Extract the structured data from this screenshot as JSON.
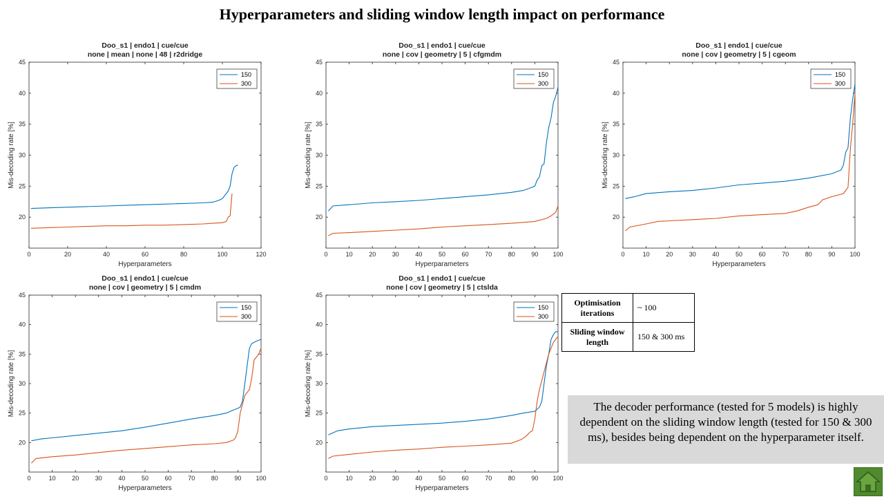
{
  "slide": {
    "title": "Hyperparameters and sliding window length impact on performance"
  },
  "info_table": {
    "rows": [
      {
        "label": "Optimisation iterations",
        "value": "~ 100"
      },
      {
        "label": "Sliding window length",
        "value": "150  &  300 ms"
      }
    ]
  },
  "summary": "The decoder performance (tested for 5 models) is highly dependent on the sliding  window length (tested for 150 & 300 ms), besides being dependent on the hyperparameter itself.",
  "home_icon": "home-icon",
  "colors": {
    "series_150": "#0072BD",
    "series_300": "#D95319"
  },
  "chart_data": [
    {
      "type": "line",
      "title": [
        "Doo_s1 | endo1 | cue/cue",
        "none | mean | none | 48 | r2dridge"
      ],
      "xlabel": "Hyperparameters",
      "ylabel": "Mis-decoding rate [%]",
      "xlim": [
        0,
        120
      ],
      "ylim": [
        15,
        45
      ],
      "xticks": [
        0,
        20,
        40,
        60,
        80,
        100,
        120
      ],
      "yticks": [
        20,
        25,
        30,
        35,
        40,
        45
      ],
      "legend": "top-right",
      "series": [
        {
          "name": "150",
          "x": [
            1,
            10,
            20,
            30,
            40,
            50,
            60,
            70,
            80,
            90,
            95,
            98,
            100,
            102,
            103,
            104,
            105,
            106,
            107,
            108
          ],
          "y": [
            21.4,
            21.5,
            21.6,
            21.7,
            21.8,
            21.9,
            22.0,
            22.1,
            22.2,
            22.3,
            22.4,
            22.7,
            23.0,
            23.8,
            24.2,
            25.0,
            27.0,
            28.0,
            28.3,
            28.4
          ]
        },
        {
          "name": "300",
          "x": [
            1,
            10,
            20,
            30,
            40,
            50,
            60,
            70,
            80,
            90,
            95,
            100,
            102,
            103,
            104,
            105
          ],
          "y": [
            18.2,
            18.3,
            18.4,
            18.5,
            18.6,
            18.6,
            18.7,
            18.7,
            18.8,
            18.9,
            19.0,
            19.1,
            19.3,
            20.0,
            20.2,
            23.8
          ]
        }
      ]
    },
    {
      "type": "line",
      "title": [
        "Doo_s1 | endo1 | cue/cue",
        "none | cov | geometry | 5 | cfgmdm"
      ],
      "xlabel": "Hyperparameters",
      "ylabel": "Mis-decoding rate [%]",
      "xlim": [
        0,
        100
      ],
      "ylim": [
        15,
        45
      ],
      "xticks": [
        0,
        10,
        20,
        30,
        40,
        50,
        60,
        70,
        80,
        90,
        100
      ],
      "yticks": [
        20,
        25,
        30,
        35,
        40,
        45
      ],
      "legend": "top-right",
      "series": [
        {
          "name": "150",
          "x": [
            1,
            3,
            10,
            20,
            30,
            40,
            50,
            60,
            70,
            80,
            85,
            88,
            90,
            91,
            92,
            93,
            94,
            95,
            96,
            97,
            98,
            99,
            100
          ],
          "y": [
            21.0,
            21.8,
            22.0,
            22.3,
            22.5,
            22.7,
            23.0,
            23.3,
            23.6,
            24.0,
            24.3,
            24.7,
            25.0,
            26.0,
            26.5,
            28.3,
            28.6,
            32.0,
            34.5,
            36.0,
            38.5,
            39.5,
            41.0
          ]
        },
        {
          "name": "300",
          "x": [
            1,
            3,
            10,
            20,
            30,
            40,
            50,
            60,
            70,
            80,
            90,
            95,
            97,
            99,
            100
          ],
          "y": [
            17.0,
            17.4,
            17.5,
            17.7,
            17.9,
            18.1,
            18.4,
            18.6,
            18.8,
            19.0,
            19.3,
            19.8,
            20.2,
            20.8,
            21.8
          ]
        }
      ]
    },
    {
      "type": "line",
      "title": [
        "Doo_s1 | endo1 | cue/cue",
        "none | cov | geometry | 5 | cgeom"
      ],
      "xlabel": "Hyperparameters",
      "ylabel": "Mis-decoding rate [%]",
      "xlim": [
        0,
        100
      ],
      "ylim": [
        15,
        45
      ],
      "xticks": [
        0,
        10,
        20,
        30,
        40,
        50,
        60,
        70,
        80,
        90,
        100
      ],
      "yticks": [
        20,
        25,
        30,
        35,
        40,
        45
      ],
      "legend": "top-right",
      "series": [
        {
          "name": "150",
          "x": [
            1,
            5,
            10,
            20,
            30,
            40,
            50,
            60,
            70,
            80,
            90,
            94,
            95,
            96,
            97,
            98,
            99,
            100
          ],
          "y": [
            23.0,
            23.3,
            23.8,
            24.1,
            24.3,
            24.7,
            25.2,
            25.5,
            25.8,
            26.3,
            27.0,
            27.6,
            28.4,
            30.5,
            31.2,
            36.0,
            39.0,
            41.5
          ]
        },
        {
          "name": "300",
          "x": [
            1,
            3,
            10,
            15,
            20,
            30,
            40,
            50,
            60,
            70,
            75,
            80,
            84,
            86,
            90,
            95,
            97,
            98,
            99,
            100
          ],
          "y": [
            17.8,
            18.4,
            18.9,
            19.3,
            19.4,
            19.6,
            19.8,
            20.2,
            20.4,
            20.6,
            21.0,
            21.6,
            22.0,
            22.8,
            23.3,
            23.8,
            24.8,
            31.0,
            35.0,
            40.0
          ]
        }
      ]
    },
    {
      "type": "line",
      "title": [
        "Doo_s1 | endo1 | cue/cue",
        "none | cov | geometry | 5 | cmdm"
      ],
      "xlabel": "Hyperparameters",
      "ylabel": "Mis-decoding rate [%]",
      "xlim": [
        0,
        100
      ],
      "ylim": [
        15,
        45
      ],
      "xticks": [
        0,
        10,
        20,
        30,
        40,
        50,
        60,
        70,
        80,
        90,
        100
      ],
      "yticks": [
        20,
        25,
        30,
        35,
        40,
        45
      ],
      "legend": "top-right",
      "series": [
        {
          "name": "150",
          "x": [
            1,
            5,
            10,
            20,
            30,
            40,
            50,
            60,
            70,
            80,
            85,
            88,
            90,
            91,
            92,
            93,
            94,
            95,
            96,
            98,
            100
          ],
          "y": [
            20.3,
            20.6,
            20.8,
            21.2,
            21.6,
            22.0,
            22.6,
            23.3,
            24.0,
            24.6,
            25.0,
            25.5,
            25.8,
            26.0,
            27.0,
            30.0,
            33.0,
            36.0,
            36.8,
            37.2,
            37.5
          ]
        },
        {
          "name": "300",
          "x": [
            1,
            3,
            10,
            20,
            30,
            40,
            50,
            60,
            70,
            80,
            85,
            88,
            89,
            90,
            91,
            92,
            93,
            95,
            96,
            97,
            98,
            99,
            100
          ],
          "y": [
            16.5,
            17.3,
            17.6,
            17.9,
            18.3,
            18.7,
            19.0,
            19.3,
            19.6,
            19.8,
            20.0,
            20.4,
            20.8,
            22.0,
            25.0,
            26.5,
            28.0,
            29.0,
            31.0,
            34.0,
            34.5,
            35.0,
            36.0
          ]
        }
      ]
    },
    {
      "type": "line",
      "title": [
        "Doo_s1 | endo1 | cue/cue",
        "none | cov | geometry | 5 | ctslda"
      ],
      "xlabel": "Hyperparameters",
      "ylabel": "Mis-decoding rate [%]",
      "xlim": [
        0,
        100
      ],
      "ylim": [
        15,
        45
      ],
      "xticks": [
        0,
        10,
        20,
        30,
        40,
        50,
        60,
        70,
        80,
        90,
        100
      ],
      "yticks": [
        20,
        25,
        30,
        35,
        40,
        45
      ],
      "legend": "top-right",
      "series": [
        {
          "name": "150",
          "x": [
            1,
            5,
            10,
            20,
            30,
            40,
            50,
            60,
            70,
            80,
            85,
            90,
            92,
            93,
            94,
            95,
            96,
            97,
            98,
            99,
            100
          ],
          "y": [
            21.3,
            22.0,
            22.3,
            22.7,
            22.9,
            23.1,
            23.3,
            23.6,
            24.0,
            24.6,
            25.0,
            25.3,
            26.0,
            27.0,
            30.0,
            33.0,
            35.0,
            37.5,
            38.3,
            38.8,
            38.8
          ]
        },
        {
          "name": "300",
          "x": [
            1,
            3,
            10,
            20,
            30,
            40,
            50,
            60,
            70,
            80,
            84,
            86,
            88,
            89,
            90,
            91,
            92,
            93,
            94,
            95,
            96,
            97,
            98,
            99,
            100
          ],
          "y": [
            17.3,
            17.7,
            18.0,
            18.4,
            18.7,
            18.9,
            19.2,
            19.4,
            19.6,
            19.9,
            20.5,
            21.0,
            21.8,
            22.0,
            24.0,
            27.0,
            29.0,
            30.5,
            32.0,
            33.5,
            35.0,
            36.0,
            37.0,
            37.5,
            38.0
          ]
        }
      ]
    }
  ]
}
